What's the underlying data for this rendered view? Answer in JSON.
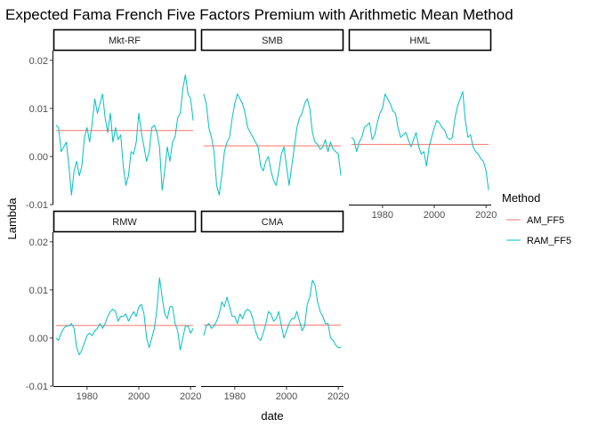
{
  "chart_data": {
    "type": "line",
    "title": "Expected Fama French Five Factors Premium with Arithmetic Mean Method",
    "xlabel": "date",
    "ylabel": "Lambda",
    "xlim": [
      1967,
      2022
    ],
    "ylim": [
      -0.01,
      0.022
    ],
    "x_ticks": [
      "1980",
      "2000",
      "2020"
    ],
    "y_ticks": [
      "-0.01",
      "0.00",
      "0.01",
      "0.02"
    ],
    "grid": false,
    "legend": {
      "title": "Method",
      "position": "right",
      "entries": [
        {
          "label": "AM_FF5",
          "color": "#F8766D"
        },
        {
          "label": "RAM_FF5",
          "color": "#00BFC4"
        }
      ]
    },
    "facets": [
      {
        "name": "Mkt-RF",
        "am_ff5": 0.0054,
        "ram_ff5": {
          "x": [
            1968,
            1969,
            1970,
            1971,
            1972,
            1973,
            1974,
            1975,
            1976,
            1977,
            1978,
            1979,
            1980,
            1981,
            1982,
            1983,
            1984,
            1985,
            1986,
            1987,
            1988,
            1989,
            1990,
            1991,
            1992,
            1993,
            1994,
            1995,
            1996,
            1997,
            1998,
            1999,
            2000,
            2001,
            2002,
            2003,
            2004,
            2005,
            2006,
            2007,
            2008,
            2009,
            2010,
            2011,
            2012,
            2013,
            2014,
            2015,
            2016,
            2017,
            2018,
            2019,
            2020,
            2021
          ],
          "y": [
            0.0065,
            0.006,
            0.001,
            0.002,
            0.003,
            -0.002,
            -0.008,
            -0.003,
            -0.001,
            -0.004,
            -0.002,
            0.004,
            0.006,
            0.003,
            0.007,
            0.012,
            0.009,
            0.011,
            0.013,
            0.008,
            0.005,
            0.009,
            0.003,
            0.006,
            0.0035,
            0.0045,
            -0.002,
            -0.006,
            -0.004,
            0.001,
            0.0005,
            0.003,
            0.009,
            0.005,
            0.002,
            -0.001,
            0.001,
            0.006,
            0.0065,
            0.005,
            0.002,
            -0.007,
            -0.003,
            0.002,
            -0.001,
            0.003,
            0.004,
            0.008,
            0.009,
            0.014,
            0.017,
            0.013,
            0.012,
            0.0075
          ]
        }
      },
      {
        "name": "SMB",
        "am_ff5": 0.0022,
        "ram_ff5": {
          "x": [
            1968,
            1969,
            1970,
            1971,
            1972,
            1973,
            1974,
            1975,
            1976,
            1977,
            1978,
            1979,
            1980,
            1981,
            1982,
            1983,
            1984,
            1985,
            1986,
            1987,
            1988,
            1989,
            1990,
            1991,
            1992,
            1993,
            1994,
            1995,
            1996,
            1997,
            1998,
            1999,
            2000,
            2001,
            2002,
            2003,
            2004,
            2005,
            2006,
            2007,
            2008,
            2009,
            2010,
            2011,
            2012,
            2013,
            2014,
            2015,
            2016,
            2017,
            2018,
            2019,
            2020,
            2021
          ],
          "y": [
            0.013,
            0.011,
            0.006,
            0.004,
            0.001,
            -0.006,
            -0.008,
            -0.004,
            0.001,
            0.003,
            0.004,
            0.008,
            0.011,
            0.013,
            0.012,
            0.011,
            0.009,
            0.006,
            0.005,
            0.004,
            0.003,
            0.002,
            -0.002,
            -0.003,
            -0.001,
            0.0,
            -0.003,
            -0.005,
            -0.006,
            -0.003,
            0.0005,
            0.002,
            -0.002,
            -0.006,
            -0.002,
            0.002,
            0.006,
            0.008,
            0.009,
            0.011,
            0.012,
            0.01,
            0.005,
            0.003,
            0.0025,
            0.0015,
            0.002,
            0.0035,
            0.001,
            0.003,
            0.0015,
            0.001,
            0.0005,
            -0.004
          ]
        }
      },
      {
        "name": "HML",
        "am_ff5": 0.0025,
        "ram_ff5": {
          "x": [
            1968,
            1969,
            1970,
            1971,
            1972,
            1973,
            1974,
            1975,
            1976,
            1977,
            1978,
            1979,
            1980,
            1981,
            1982,
            1983,
            1984,
            1985,
            1986,
            1987,
            1988,
            1989,
            1990,
            1991,
            1992,
            1993,
            1994,
            1995,
            1996,
            1997,
            1998,
            1999,
            2000,
            2001,
            2002,
            2003,
            2004,
            2005,
            2006,
            2007,
            2008,
            2009,
            2010,
            2011,
            2012,
            2013,
            2014,
            2015,
            2016,
            2017,
            2018,
            2019,
            2020,
            2021
          ],
          "y": [
            0.004,
            0.0035,
            0.001,
            0.003,
            0.004,
            0.006,
            0.0065,
            0.007,
            0.0035,
            0.0045,
            0.007,
            0.009,
            0.01,
            0.013,
            0.012,
            0.011,
            0.0095,
            0.009,
            0.006,
            0.004,
            0.0045,
            0.005,
            0.0035,
            0.002,
            0.0035,
            0.005,
            0.002,
            0.0005,
            0.001,
            -0.002,
            0.002,
            0.004,
            0.006,
            0.0075,
            0.007,
            0.006,
            0.0055,
            0.004,
            0.0035,
            0.004,
            0.008,
            0.0105,
            0.012,
            0.0135,
            0.0075,
            0.004,
            0.0045,
            0.002,
            0.001,
            0.0005,
            -0.0005,
            -0.001,
            -0.003,
            -0.007
          ]
        }
      },
      {
        "name": "RMW",
        "am_ff5": 0.0026,
        "ram_ff5": {
          "x": [
            1968,
            1969,
            1970,
            1971,
            1972,
            1973,
            1974,
            1975,
            1976,
            1977,
            1978,
            1979,
            1980,
            1981,
            1982,
            1983,
            1984,
            1985,
            1986,
            1987,
            1988,
            1989,
            1990,
            1991,
            1992,
            1993,
            1994,
            1995,
            1996,
            1997,
            1998,
            1999,
            2000,
            2001,
            2002,
            2003,
            2004,
            2005,
            2006,
            2007,
            2008,
            2009,
            2010,
            2011,
            2012,
            2013,
            2014,
            2015,
            2016,
            2017,
            2018,
            2019,
            2020,
            2021
          ],
          "y": [
            0.0,
            -0.0005,
            0.001,
            0.002,
            0.0025,
            0.0025,
            0.003,
            0.002,
            -0.002,
            -0.0035,
            -0.0025,
            -0.001,
            0.0005,
            0.001,
            0.0005,
            0.0015,
            0.002,
            0.003,
            0.002,
            0.003,
            0.0045,
            0.0055,
            0.006,
            0.0055,
            0.0035,
            0.0045,
            0.0045,
            0.005,
            0.0035,
            0.0045,
            0.0055,
            0.0045,
            0.0065,
            0.007,
            0.005,
            0.0,
            -0.002,
            0.0,
            0.002,
            0.006,
            0.0125,
            0.0085,
            0.005,
            0.004,
            0.0065,
            0.0065,
            0.003,
            0.0015,
            -0.0025,
            0.0,
            0.0025,
            0.0025,
            0.001,
            0.002
          ]
        }
      },
      {
        "name": "CMA",
        "am_ff5": 0.0027,
        "ram_ff5": {
          "x": [
            1968,
            1969,
            1970,
            1971,
            1972,
            1973,
            1974,
            1975,
            1976,
            1977,
            1978,
            1979,
            1980,
            1981,
            1982,
            1983,
            1984,
            1985,
            1986,
            1987,
            1988,
            1989,
            1990,
            1991,
            1992,
            1993,
            1994,
            1995,
            1996,
            1997,
            1998,
            1999,
            2000,
            2001,
            2002,
            2003,
            2004,
            2005,
            2006,
            2007,
            2008,
            2009,
            2010,
            2011,
            2012,
            2013,
            2014,
            2015,
            2016,
            2017,
            2018,
            2019,
            2020,
            2021
          ],
          "y": [
            0.0005,
            0.0025,
            0.003,
            0.002,
            0.0025,
            0.0035,
            0.005,
            0.0075,
            0.0065,
            0.0085,
            0.0065,
            0.0045,
            0.0045,
            0.003,
            0.005,
            0.004,
            0.0055,
            0.006,
            0.0055,
            0.004,
            0.0015,
            0.0,
            -0.0005,
            0.001,
            0.003,
            0.0055,
            0.005,
            0.0035,
            0.004,
            0.0055,
            0.0025,
            0.0,
            0.0015,
            0.003,
            0.004,
            0.004,
            0.0055,
            0.0035,
            0.0015,
            0.0025,
            0.007,
            0.0085,
            0.012,
            0.011,
            0.0075,
            0.0055,
            0.0045,
            0.003,
            0.003,
            0.0,
            -0.0005,
            -0.0015,
            -0.002,
            -0.002
          ]
        }
      }
    ]
  }
}
